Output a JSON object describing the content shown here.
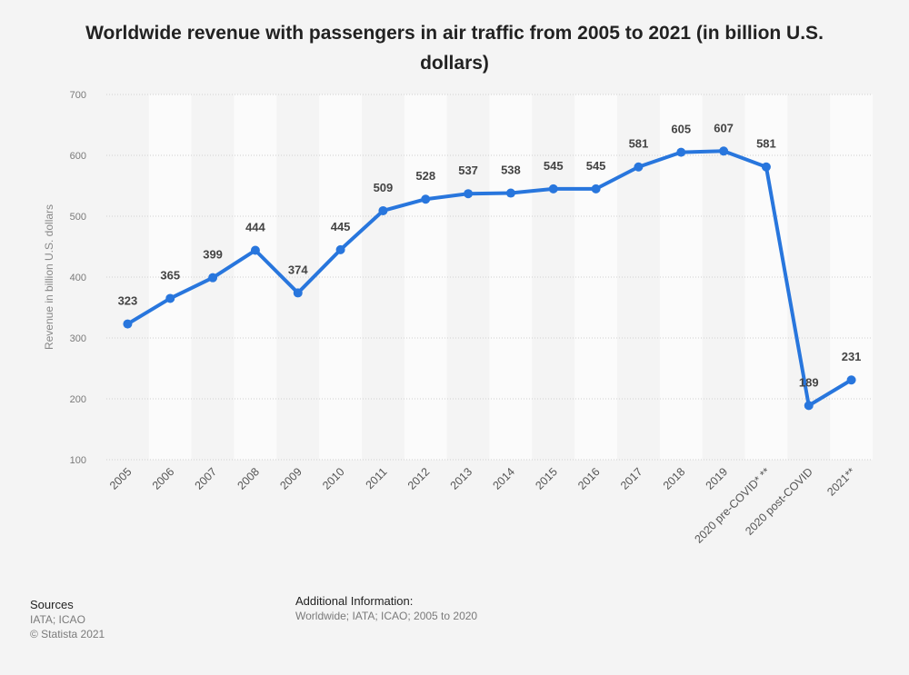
{
  "title": "Worldwide revenue with passengers in air traffic from 2005 to 2021 (in billion U.S. dollars)",
  "chart_data": {
    "type": "line",
    "categories": [
      "2005",
      "2006",
      "2007",
      "2008",
      "2009",
      "2010",
      "2011",
      "2012",
      "2013",
      "2014",
      "2015",
      "2016",
      "2017",
      "2018",
      "2019",
      "2020 pre-COVID* **",
      "2020 post-COVID",
      "2021**"
    ],
    "values": [
      323,
      365,
      399,
      444,
      374,
      445,
      509,
      528,
      537,
      538,
      545,
      545,
      581,
      605,
      607,
      581,
      189,
      231
    ],
    "ylabel": "Revenue in billion U.S. dollars",
    "xlabel": "",
    "ylim": [
      100,
      700
    ],
    "yticks": [
      100,
      200,
      300,
      400,
      500,
      600,
      700
    ],
    "grid": true,
    "line_color": "#2876dd"
  },
  "sources": {
    "heading": "Sources",
    "lines": [
      "IATA; ICAO",
      "© Statista 2021"
    ]
  },
  "additional_info": {
    "heading": "Additional Information:",
    "text": "Worldwide; IATA; ICAO; 2005 to 2020"
  }
}
